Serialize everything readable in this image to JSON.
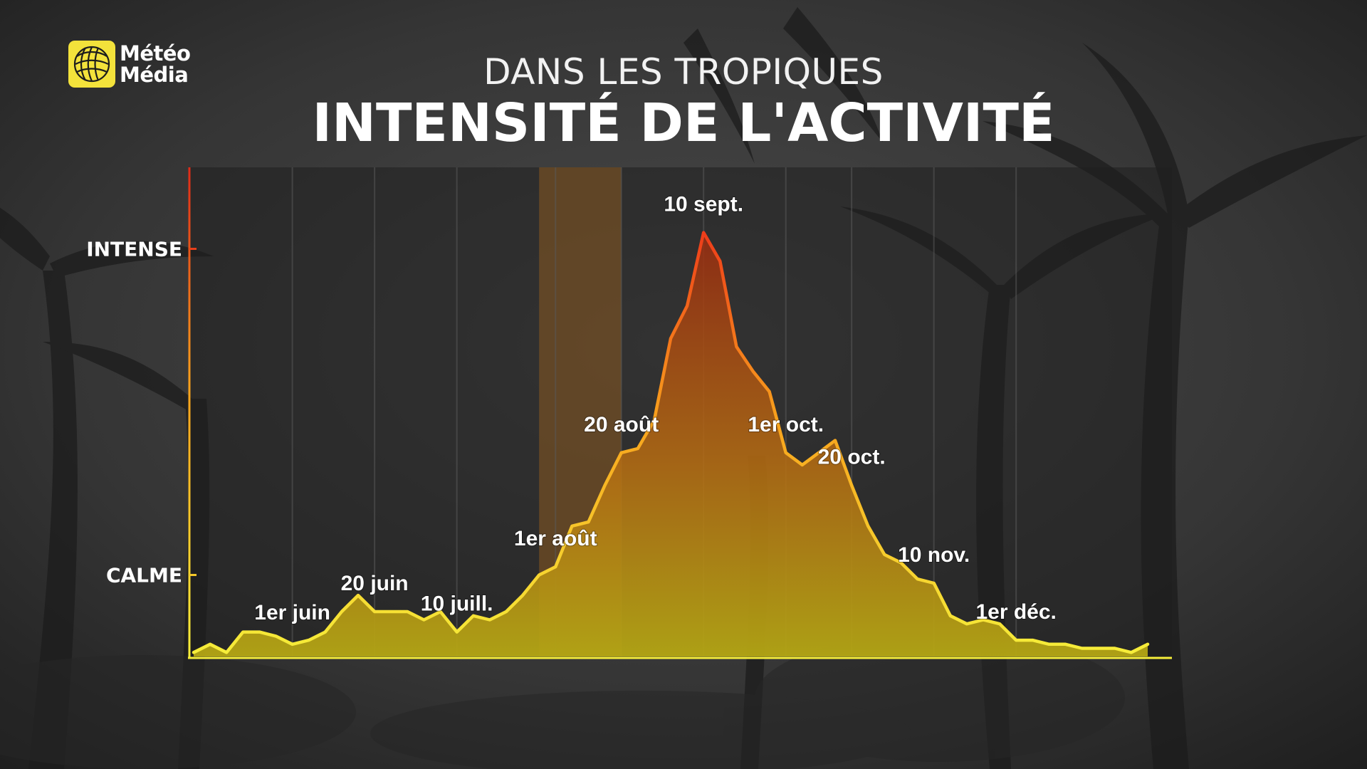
{
  "branding": {
    "logo_line1": "Météo",
    "logo_line2": "Média",
    "logo_color": "#f3e23b"
  },
  "header": {
    "subtitle": "DANS LES TROPIQUES",
    "title": "INTENSITÉ DE L'ACTIVITÉ"
  },
  "chart_data": {
    "type": "area",
    "title": "INTENSITÉ DE L'ACTIVITÉ",
    "subtitle": "DANS LES TROPIQUES",
    "xlabel": "",
    "ylabel": "",
    "y_tick_labels": [
      {
        "label": "CALME",
        "value": 20
      },
      {
        "label": "INTENSE",
        "value": 100
      }
    ],
    "ylim": [
      0,
      120
    ],
    "xlim": [
      0,
      56
    ],
    "highlight_band": [
      21,
      26
    ],
    "highlight_color": "#8a5a20",
    "line_gradient": [
      "#f6ee3a",
      "#f8a21c",
      "#ee3a1a"
    ],
    "grid": "vertical",
    "values": [
      1,
      3,
      1,
      6,
      6,
      5,
      3,
      4,
      6,
      11,
      15,
      11,
      11,
      11,
      9,
      11,
      6,
      10,
      9,
      11,
      15,
      20,
      22,
      32,
      33,
      42,
      50,
      51,
      58,
      78,
      86,
      104,
      97,
      76,
      70,
      65,
      50,
      47,
      50,
      53,
      42,
      32,
      25,
      23,
      19,
      18,
      10,
      8,
      9,
      8,
      4,
      4,
      3,
      3,
      2,
      2,
      2,
      1,
      3
    ],
    "annotations": [
      {
        "label": "1er juin",
        "x": 6
      },
      {
        "label": "20 juin",
        "x": 11
      },
      {
        "label": "10 juill.",
        "x": 16
      },
      {
        "label": "1er août",
        "x": 22
      },
      {
        "label": "20 août",
        "x": 26
      },
      {
        "label": "10 sept.",
        "x": 31
      },
      {
        "label": "1er oct.",
        "x": 36
      },
      {
        "label": "20 oct.",
        "x": 40
      },
      {
        "label": "10 nov.",
        "x": 45
      },
      {
        "label": "1er déc.",
        "x": 50
      }
    ]
  }
}
